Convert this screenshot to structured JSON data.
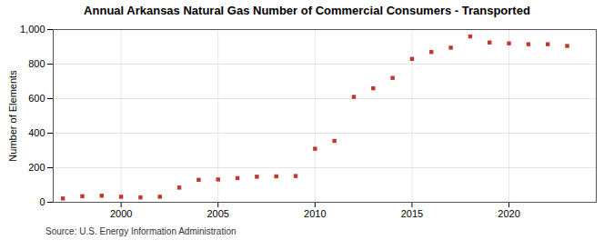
{
  "chart_data": {
    "type": "scatter",
    "title": "Annual Arkansas Natural Gas Number of Commercial Consumers - Transported",
    "ylabel": "Number of Elements",
    "source": "Source: U.S. Energy Information Administration",
    "x": [
      1997,
      1998,
      1999,
      2000,
      2001,
      2002,
      2003,
      2004,
      2005,
      2006,
      2007,
      2008,
      2009,
      2010,
      2011,
      2012,
      2013,
      2014,
      2015,
      2016,
      2017,
      2018,
      2019,
      2020,
      2021,
      2022,
      2023
    ],
    "values": [
      22,
      35,
      38,
      32,
      28,
      32,
      85,
      130,
      132,
      140,
      148,
      150,
      152,
      310,
      355,
      610,
      660,
      720,
      830,
      870,
      895,
      960,
      925,
      920,
      915,
      915,
      905
    ],
    "color": "#c0392b",
    "marker": "square",
    "xlim": [
      1996.5,
      2024.5
    ],
    "xticks": [
      2000,
      2005,
      2010,
      2015,
      2020
    ],
    "ylim": [
      0,
      1000
    ],
    "yticks": [
      0,
      200,
      400,
      600,
      800,
      {
        "value": 1000,
        "label": "1,000"
      }
    ],
    "grid": true
  }
}
